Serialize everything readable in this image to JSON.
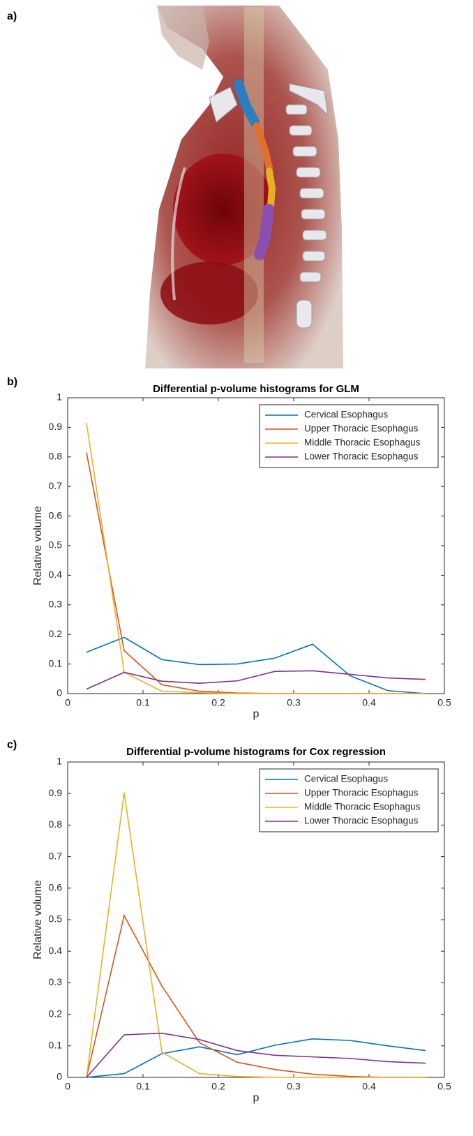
{
  "panel_labels": [
    "a)",
    "b)",
    "c)"
  ],
  "chart_data": [
    {
      "type": "line",
      "title": "Differential p-volume histograms for GLM",
      "x_label": "p",
      "y_label": "Relative volume",
      "x": [
        0.025,
        0.075,
        0.125,
        0.175,
        0.225,
        0.275,
        0.325,
        0.375,
        0.425,
        0.475
      ],
      "series": [
        {
          "name": "Cervical Esophagus",
          "color": "#0072BD",
          "values": [
            0.14,
            0.19,
            0.115,
            0.098,
            0.1,
            0.12,
            0.167,
            0.06,
            0.01,
            0
          ]
        },
        {
          "name": "Upper Thoracic Esophagus",
          "color": "#D95319",
          "values": [
            0.815,
            0.145,
            0.03,
            0.008,
            0.002,
            0,
            0,
            0,
            0,
            0
          ]
        },
        {
          "name": "Middle Thoracic Esophagus",
          "color": "#EDB120",
          "values": [
            0.915,
            0.072,
            0.008,
            0.003,
            0,
            0,
            0,
            0,
            0,
            0
          ]
        },
        {
          "name": "Lower Thoracic Esophagus",
          "color": "#7E2F8E",
          "values": [
            0.015,
            0.072,
            0.042,
            0.035,
            0.043,
            0.075,
            0.077,
            0.065,
            0.053,
            0.048
          ]
        }
      ],
      "xlim": [
        0,
        0.5
      ],
      "xticks": [
        0,
        0.1,
        0.2,
        0.3,
        0.4,
        0.5
      ],
      "ylim": [
        0,
        1
      ],
      "yticks": [
        0,
        0.1,
        0.2,
        0.3,
        0.4,
        0.5,
        0.6,
        0.7,
        0.8,
        0.9,
        1
      ],
      "legend": "upper-right",
      "grid": false
    },
    {
      "type": "line",
      "title": "Differential p-volume histograms for Cox regression",
      "x_label": "p",
      "y_label": "Relative volume",
      "x": [
        0.025,
        0.075,
        0.125,
        0.175,
        0.225,
        0.275,
        0.325,
        0.375,
        0.425,
        0.475
      ],
      "series": [
        {
          "name": "Cervical Esophagus",
          "color": "#0072BD",
          "values": [
            0,
            0.012,
            0.075,
            0.097,
            0.072,
            0.102,
            0.122,
            0.117,
            0.1,
            0.085
          ]
        },
        {
          "name": "Upper Thoracic Esophagus",
          "color": "#D95319",
          "values": [
            0,
            0.513,
            0.29,
            0.11,
            0.048,
            0.025,
            0.01,
            0.003,
            0,
            0
          ]
        },
        {
          "name": "Middle Thoracic Esophagus",
          "color": "#EDB120",
          "values": [
            0,
            0.903,
            0.08,
            0.012,
            0.003,
            0,
            0,
            0,
            0,
            0
          ]
        },
        {
          "name": "Lower Thoracic Esophagus",
          "color": "#7E2F8E",
          "values": [
            0,
            0.135,
            0.14,
            0.12,
            0.085,
            0.07,
            0.065,
            0.06,
            0.05,
            0.045
          ]
        }
      ],
      "xlim": [
        0,
        0.5
      ],
      "xticks": [
        0,
        0.1,
        0.2,
        0.3,
        0.4,
        0.5
      ],
      "ylim": [
        0,
        1
      ],
      "yticks": [
        0,
        0.1,
        0.2,
        0.3,
        0.4,
        0.5,
        0.6,
        0.7,
        0.8,
        0.9,
        1
      ],
      "legend": "upper-right",
      "grid": false
    }
  ]
}
